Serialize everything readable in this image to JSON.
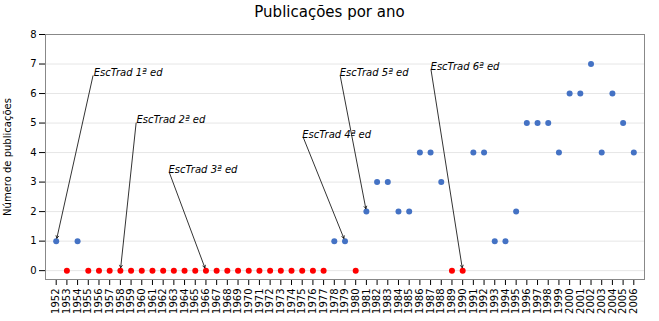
{
  "chart_data": {
    "type": "scatter",
    "title": "Publicações por ano",
    "y_label": "Número de publicações",
    "x": [
      1952,
      1953,
      1954,
      1955,
      1956,
      1957,
      1958,
      1959,
      1960,
      1961,
      1962,
      1963,
      1964,
      1965,
      1966,
      1967,
      1968,
      1969,
      1970,
      1971,
      1972,
      1973,
      1974,
      1975,
      1976,
      1977,
      1978,
      1979,
      1980,
      1981,
      1982,
      1983,
      1984,
      1985,
      1986,
      1987,
      1988,
      1989,
      1990,
      1991,
      1992,
      1993,
      1994,
      1995,
      1996,
      1997,
      1998,
      1999,
      2000,
      2001,
      2002,
      2003,
      2004,
      2005,
      2006
    ],
    "values": [
      1,
      0,
      1,
      0,
      0,
      0,
      0,
      0,
      0,
      0,
      0,
      0,
      0,
      0,
      0,
      0,
      0,
      0,
      0,
      0,
      0,
      0,
      0,
      0,
      0,
      0,
      1,
      1,
      0,
      2,
      3,
      3,
      2,
      2,
      4,
      4,
      3,
      0,
      0,
      4,
      4,
      1,
      1,
      2,
      5,
      5,
      5,
      4,
      6,
      6,
      7,
      4,
      6,
      5,
      4
    ],
    "colors": [
      "#4472C4",
      "#FF0000",
      "#4472C4",
      "#FF0000",
      "#FF0000",
      "#FF0000",
      "#FF0000",
      "#FF0000",
      "#FF0000",
      "#FF0000",
      "#FF0000",
      "#FF0000",
      "#FF0000",
      "#FF0000",
      "#FF0000",
      "#FF0000",
      "#FF0000",
      "#FF0000",
      "#FF0000",
      "#FF0000",
      "#FF0000",
      "#FF0000",
      "#FF0000",
      "#FF0000",
      "#FF0000",
      "#FF0000",
      "#4472C4",
      "#4472C4",
      "#FF0000",
      "#4472C4",
      "#4472C4",
      "#4472C4",
      "#4472C4",
      "#4472C4",
      "#4472C4",
      "#4472C4",
      "#4472C4",
      "#FF0000",
      "#FF0000",
      "#4472C4",
      "#4472C4",
      "#4472C4",
      "#4472C4",
      "#4472C4",
      "#4472C4",
      "#4472C4",
      "#4472C4",
      "#4472C4",
      "#4472C4",
      "#4472C4",
      "#4472C4",
      "#4472C4",
      "#4472C4",
      "#4472C4",
      "#4472C4"
    ],
    "xlim": [
      1951,
      2007
    ],
    "xticks": [
      1952,
      1953,
      1954,
      1955,
      1956,
      1957,
      1958,
      1959,
      1960,
      1961,
      1962,
      1963,
      1964,
      1965,
      1966,
      1967,
      1968,
      1969,
      1970,
      1971,
      1972,
      1973,
      1974,
      1975,
      1976,
      1977,
      1978,
      1979,
      1980,
      1981,
      1982,
      1983,
      1984,
      1985,
      1986,
      1987,
      1988,
      1989,
      1990,
      1991,
      1992,
      1993,
      1994,
      1995,
      1996,
      1997,
      1998,
      1999,
      2000,
      2001,
      2002,
      2003,
      2004,
      2005,
      2006
    ],
    "ylim": [
      -0.3,
      8
    ],
    "yticks": [
      0,
      1,
      2,
      3,
      4,
      5,
      6,
      7,
      8
    ],
    "grid": true,
    "annotations": [
      {
        "text": "EscTrad 1ª ed",
        "x": 1952,
        "y": 1,
        "text_x": 1955.5,
        "text_y": 6.7
      },
      {
        "text": "EscTrad 2ª ed",
        "x": 1958,
        "y": 0,
        "text_x": 1959.5,
        "text_y": 5.1
      },
      {
        "text": "EscTrad 3ª ed",
        "x": 1966,
        "y": 0,
        "text_x": 1962.5,
        "text_y": 3.4
      },
      {
        "text": "EscTrad 4ª ed",
        "x": 1979,
        "y": 1,
        "text_x": 1975.0,
        "text_y": 4.6
      },
      {
        "text": "EscTrad 5ª ed",
        "x": 1981,
        "y": 2,
        "text_x": 1978.5,
        "text_y": 6.7
      },
      {
        "text": "EscTrad 6ª ed",
        "x": 1990,
        "y": 0,
        "text_x": 1987.0,
        "text_y": 6.9
      }
    ]
  }
}
